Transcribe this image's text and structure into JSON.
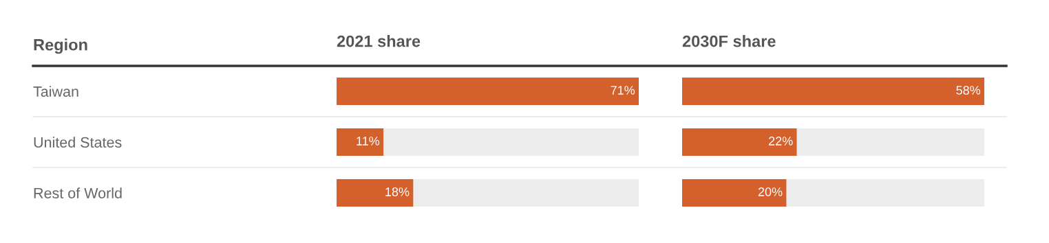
{
  "chart_data": [
    {
      "type": "bar",
      "orientation": "horizontal",
      "title": "2021 share",
      "ylabel": "Region",
      "categories": [
        "Taiwan",
        "United States",
        "Rest of World"
      ],
      "values": [
        71,
        11,
        18
      ],
      "value_labels": [
        "71%",
        "11%",
        "18%"
      ],
      "color": "#d4602b",
      "grid": false,
      "legend": false
    },
    {
      "type": "bar",
      "orientation": "horizontal",
      "title": "2030F share",
      "values": [
        58,
        22,
        20
      ],
      "value_labels": [
        "58%",
        "22%",
        "20%"
      ],
      "color": "#d4602b",
      "grid": false,
      "legend": false
    }
  ]
}
